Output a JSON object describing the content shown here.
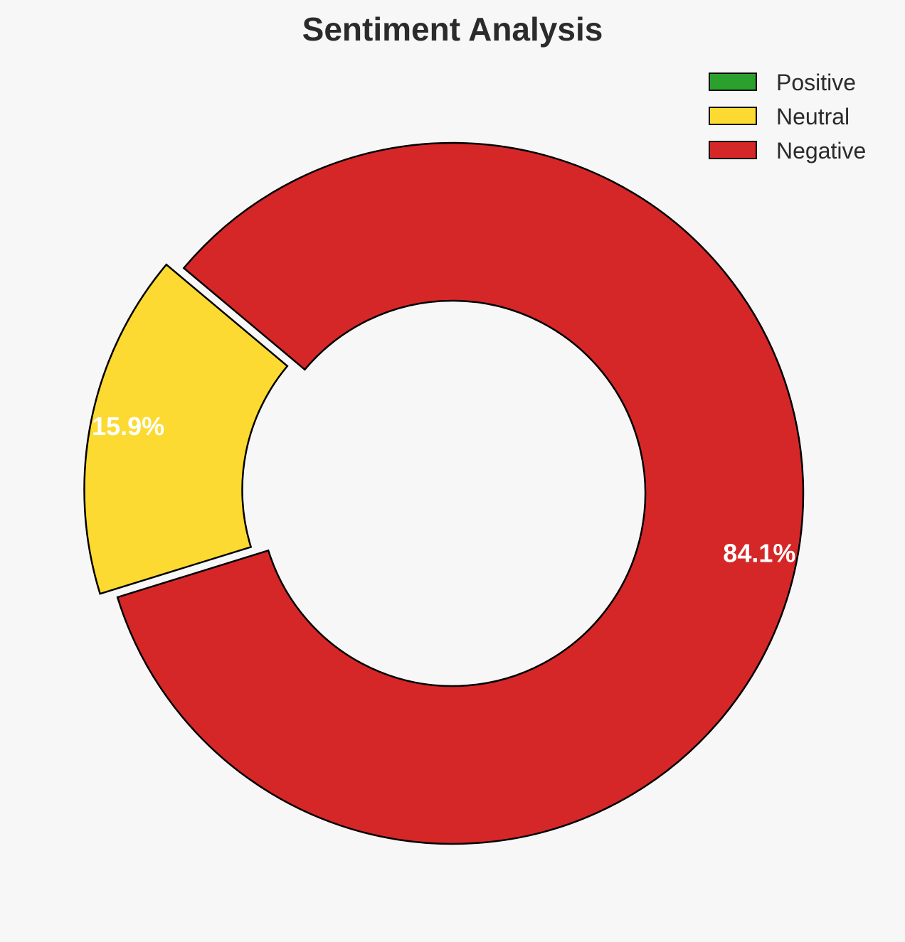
{
  "chart_data": {
    "type": "pie",
    "title": "Sentiment Analysis",
    "style": "donut",
    "categories": [
      "Positive",
      "Neutral",
      "Negative"
    ],
    "values": [
      0.0,
      15.9,
      84.1
    ],
    "labels": [
      "",
      "15.9%",
      "84.1%"
    ],
    "colors": [
      "#2ca02c",
      "#fdda32",
      "#d62728"
    ],
    "legend_placement": "top-right",
    "exploded": [
      "Neutral"
    ]
  }
}
